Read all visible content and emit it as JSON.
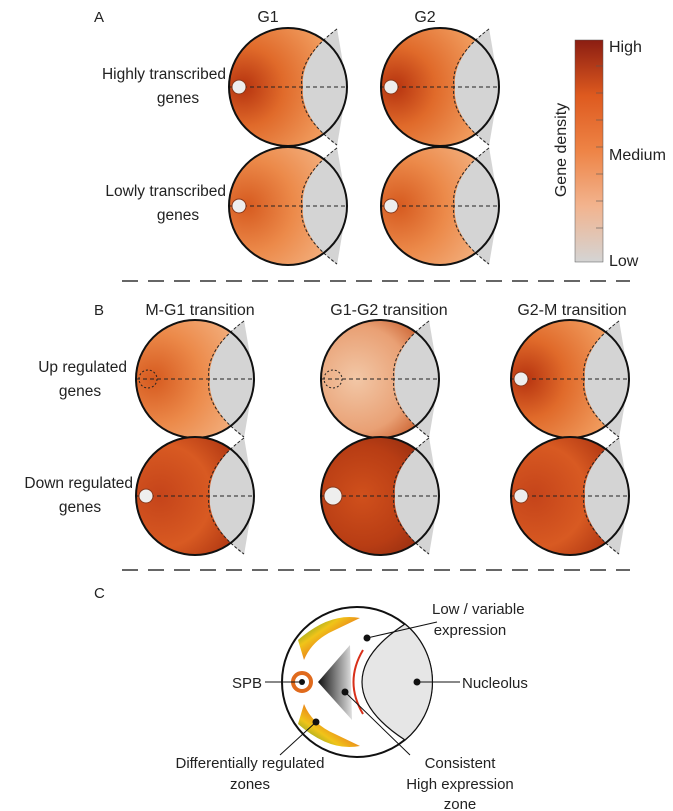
{
  "panel_a": {
    "letter": "A",
    "columns": [
      "G1",
      "G2"
    ],
    "rows": [
      [
        "Highly transcribed",
        "genes"
      ],
      [
        "Lowly transcribed",
        "genes"
      ]
    ]
  },
  "colorbar": {
    "title": "Gene density",
    "high": "High",
    "medium": "Medium",
    "low": "Low",
    "colors": [
      "#d4d4d4",
      "#f2b48f",
      "#ee8446",
      "#de5a1f",
      "#8b1d12"
    ]
  },
  "panel_b": {
    "letter": "B",
    "columns": [
      "M-G1 transition",
      "G1-G2 transition",
      "G2-M transition"
    ],
    "rows": [
      [
        "Up regulated",
        "genes"
      ],
      [
        "Down regulated",
        "genes"
      ]
    ]
  },
  "panel_c": {
    "letter": "C",
    "labels": {
      "low": [
        "Low / variable",
        "expression"
      ],
      "nucleolus": "Nucleolus",
      "spb": "SPB",
      "diff": [
        "Differentially regulated",
        "zones"
      ],
      "consistent": [
        "Consistent",
        "High expression",
        "zone"
      ]
    }
  }
}
